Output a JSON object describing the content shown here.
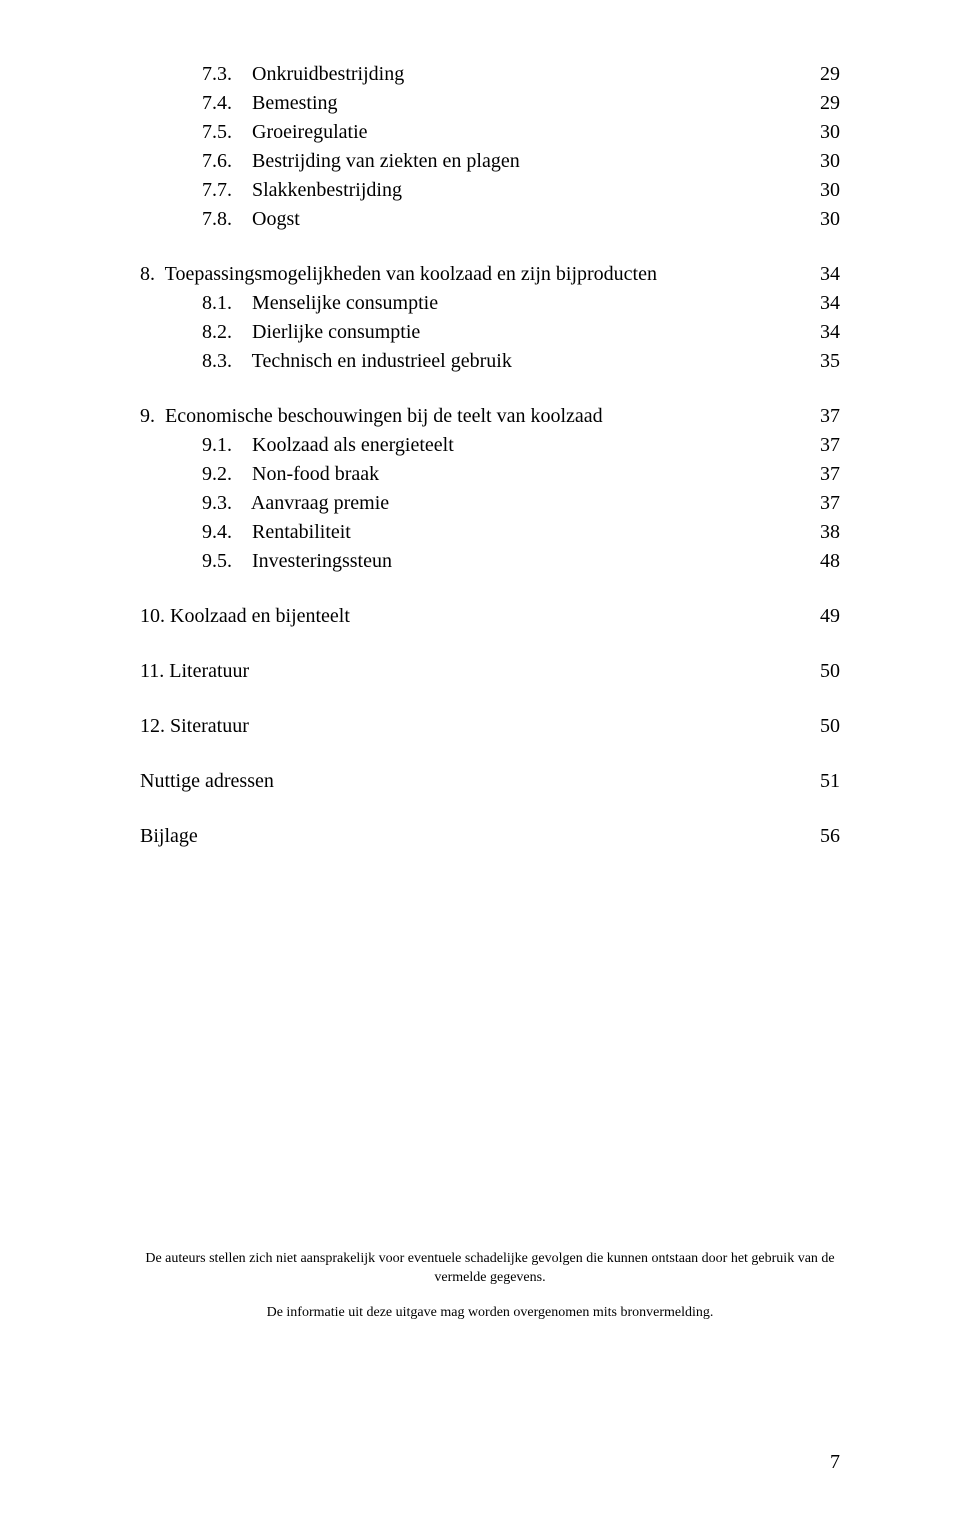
{
  "toc": {
    "groups": [
      {
        "rows": [
          {
            "indent": "sub",
            "label": "7.3.    Onkruidbestrijding",
            "page": "29"
          },
          {
            "indent": "sub",
            "label": "7.4.    Bemesting",
            "page": "29"
          },
          {
            "indent": "sub",
            "label": "7.5.    Groeiregulatie",
            "page": "30"
          },
          {
            "indent": "sub",
            "label": "7.6.    Bestrijding van ziekten en plagen",
            "page": "30"
          },
          {
            "indent": "sub",
            "label": "7.7.    Slakkenbestrijding",
            "page": "30"
          },
          {
            "indent": "sub",
            "label": "7.8.    Oogst",
            "page": "30"
          }
        ]
      },
      {
        "rows": [
          {
            "indent": "flat",
            "label": "8.  Toepassingsmogelijkheden van koolzaad en zijn bijproducten",
            "page": "34"
          },
          {
            "indent": "sub",
            "label": "8.1.    Menselijke consumptie",
            "page": "34"
          },
          {
            "indent": "sub",
            "label": "8.2.    Dierlijke consumptie",
            "page": "34"
          },
          {
            "indent": "sub",
            "label": "8.3.    Technisch en industrieel gebruik",
            "page": "35"
          }
        ]
      },
      {
        "rows": [
          {
            "indent": "flat",
            "label": "9.  Economische beschouwingen bij de teelt van koolzaad",
            "page": "37"
          },
          {
            "indent": "sub",
            "label": "9.1.    Koolzaad als energieteelt",
            "page": "37"
          },
          {
            "indent": "sub",
            "label": "9.2.    Non-food braak",
            "page": "37"
          },
          {
            "indent": "sub",
            "label": "9.3.    Aanvraag premie",
            "page": "37"
          },
          {
            "indent": "sub",
            "label": "9.4.    Rentabiliteit",
            "page": "38"
          },
          {
            "indent": "sub",
            "label": "9.5.    Investeringssteun",
            "page": "48"
          }
        ]
      },
      {
        "rows": [
          {
            "indent": "flat",
            "label": "10. Koolzaad en bijenteelt",
            "page": "49"
          }
        ]
      },
      {
        "rows": [
          {
            "indent": "flat",
            "label": "11. Literatuur",
            "page": "50"
          }
        ]
      },
      {
        "rows": [
          {
            "indent": "flat",
            "label": "12. Siteratuur",
            "page": "50"
          }
        ]
      },
      {
        "rows": [
          {
            "indent": "flat",
            "label": "Nuttige adressen",
            "page": "51"
          }
        ]
      },
      {
        "rows": [
          {
            "indent": "flat",
            "label": "Bijlage",
            "page": "56"
          }
        ]
      }
    ]
  },
  "footnotes": {
    "line1": "De auteurs stellen zich niet aansprakelijk voor eventuele schadelijke gevolgen die kunnen ontstaan door het gebruik van de vermelde gegevens.",
    "line2": "De informatie uit deze uitgave mag worden overgenomen mits bronvermelding."
  },
  "page_number": "7",
  "style": {
    "font_family": "Times New Roman",
    "body_fontsize_pt": 15,
    "footnote_fontsize_pt": 10,
    "text_color": "#000000",
    "background_color": "#ffffff"
  }
}
